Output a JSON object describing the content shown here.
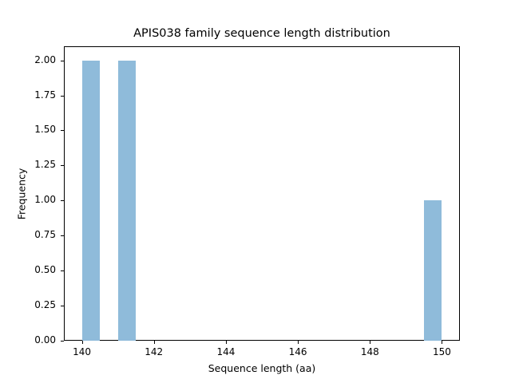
{
  "chart_data": {
    "type": "bar",
    "title": "APIS038 family sequence length distribution",
    "xlabel": "Sequence length (aa)",
    "ylabel": "Frequency",
    "xlim": [
      139.5,
      150.5
    ],
    "ylim": [
      0,
      2.1
    ],
    "bin_width": 0.5,
    "bins": [
      {
        "start": 140.0,
        "end": 140.5,
        "count": 2
      },
      {
        "start": 141.0,
        "end": 141.5,
        "count": 2
      },
      {
        "start": 149.5,
        "end": 150.0,
        "count": 1
      }
    ],
    "categories": [
      "140.0-140.5",
      "141.0-141.5",
      "149.5-150.0"
    ],
    "values": [
      2,
      2,
      1
    ],
    "x_ticks": [
      "140",
      "142",
      "144",
      "146",
      "148",
      "150"
    ],
    "y_ticks": [
      "0.00",
      "0.25",
      "0.50",
      "0.75",
      "1.00",
      "1.25",
      "1.50",
      "1.75",
      "2.00"
    ],
    "bar_color": "#8fbbda",
    "grid": false,
    "legend": null
  }
}
